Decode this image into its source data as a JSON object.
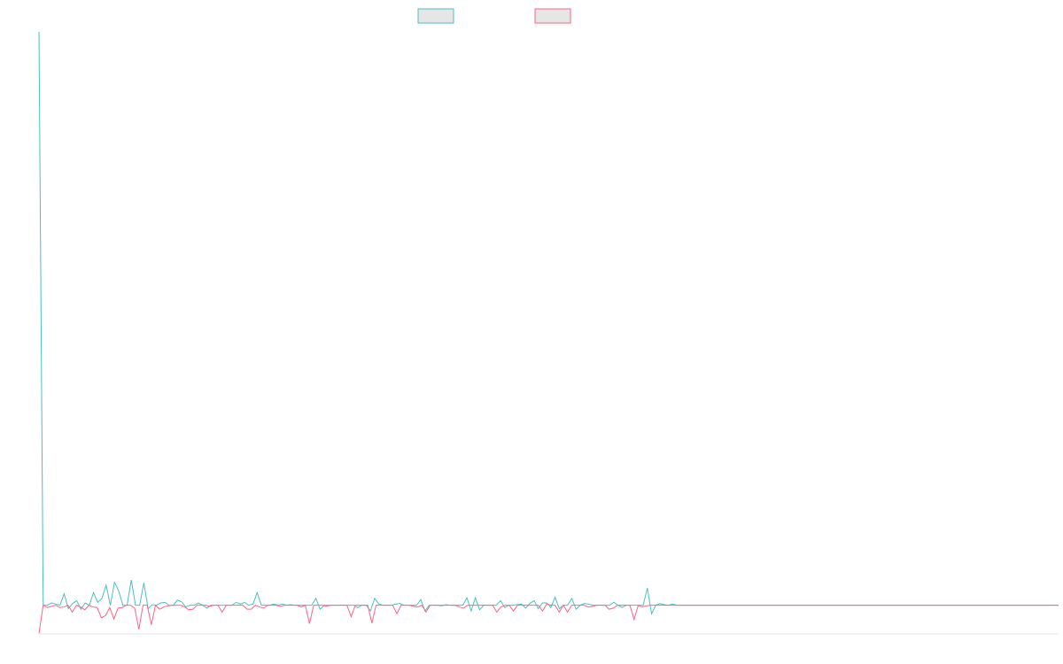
{
  "colors": {
    "series_a": "#4bc0c0",
    "series_b": "#ff6384",
    "legend_fill": "#e6e6e6",
    "axis": "#e6e6e6"
  },
  "chart_data": {
    "type": "line",
    "title": "",
    "xlabel": "",
    "ylabel": "",
    "legend_position": "top",
    "grid": false,
    "ylim": [
      -5,
      100
    ],
    "series": [
      {
        "color": "#4bc0c0",
        "values": [
          100,
          0,
          0,
          0.4,
          0.2,
          0,
          2,
          -0.6,
          0.3,
          0.8,
          -0.7,
          0.4,
          0,
          2.2,
          0.5,
          1.2,
          3.5,
          0,
          4,
          2.5,
          0,
          0,
          4.4,
          0,
          0,
          3.9,
          -0.6,
          0.1,
          0,
          0.4,
          0.5,
          0,
          0,
          0.9,
          0.6,
          -0.3,
          0,
          0,
          0.4,
          0,
          -0.5,
          0,
          0,
          0,
          0,
          0,
          0,
          0.5,
          0.2,
          0.5,
          0,
          0.2,
          2.2,
          0,
          0,
          0,
          0.2,
          0,
          0.2,
          0,
          0.1,
          0,
          0,
          0,
          0,
          0,
          1.2,
          -0.7,
          0,
          0,
          0,
          0,
          0,
          0,
          0,
          0,
          -0.4,
          0,
          0,
          -1,
          1.2,
          0.2,
          0,
          0,
          0,
          0.2,
          0.3,
          0,
          0,
          0,
          0,
          1,
          -1,
          0,
          0,
          0,
          -0.1,
          0.1,
          0,
          0,
          0,
          0,
          1.3,
          -1,
          1.3,
          -0.8,
          0,
          0,
          0,
          0,
          0.8,
          -0.4,
          0,
          0,
          0.1,
          0.2,
          -0.5,
          0.3,
          0.8,
          -0.6,
          0.4,
          0.4,
          -0.4,
          1.4,
          -0.6,
          0,
          0,
          1.2,
          -0.7,
          0,
          0.3,
          0.2,
          0,
          0,
          0,
          0,
          0,
          0.5,
          0,
          -0.4,
          0,
          0,
          0,
          0,
          0,
          3,
          -1.5,
          0,
          0.3,
          0.1,
          0,
          0.2,
          0,
          0,
          0,
          0,
          0,
          0,
          0,
          0,
          0,
          0,
          0,
          0,
          0,
          0,
          0,
          0,
          0,
          0,
          0,
          0,
          0,
          0,
          0,
          0,
          0,
          0,
          0,
          0,
          0,
          0,
          0,
          0,
          0,
          0,
          0,
          0,
          0,
          0,
          0,
          0,
          0,
          0,
          0,
          0,
          0,
          0,
          0,
          0,
          0,
          0,
          0,
          0,
          0,
          0,
          0,
          0,
          0,
          0,
          0,
          0,
          0,
          0,
          0,
          0,
          0,
          0,
          0,
          0,
          0,
          0,
          0,
          0,
          0,
          0,
          0,
          0,
          0,
          0,
          0,
          0,
          0,
          0,
          0,
          0,
          0,
          0,
          0,
          0,
          0,
          0,
          0,
          0
        ]
      },
      {
        "color": "#ff6384",
        "values": [
          -4.9,
          0,
          -0.4,
          -0.2,
          0,
          -0.4,
          -0.3,
          0,
          -1.2,
          0,
          -0.3,
          -0.8,
          0,
          -0.3,
          -0.4,
          -2.2,
          -1.8,
          -0.4,
          -2.4,
          -0.5,
          -0.4,
          0,
          0,
          -0.5,
          -4.2,
          0,
          0,
          -3.4,
          0,
          -0.7,
          -0.3,
          -0.1,
          0,
          0,
          0,
          -0.3,
          -0.8,
          -0.7,
          0,
          0,
          0,
          -0.2,
          0,
          0,
          -1.2,
          0,
          0,
          0,
          0,
          0,
          -0.7,
          -0.7,
          0,
          -0.3,
          -0.5,
          0,
          0,
          0,
          -0.2,
          0,
          0,
          0,
          0,
          -0.3,
          0,
          -3.2,
          0,
          0,
          0,
          -0.2,
          0,
          0,
          0,
          0,
          0,
          -2,
          0,
          0,
          0,
          0,
          -3.1,
          0,
          0,
          0,
          0,
          0,
          -1.5,
          0,
          0,
          0,
          -0.2,
          -0.3,
          0,
          -1.2,
          0,
          0,
          0,
          0,
          0,
          0,
          0,
          -0.3,
          -0.5,
          0,
          0,
          0,
          0,
          0,
          0,
          0,
          -1.2,
          -0.3,
          0,
          0,
          -1,
          0,
          0,
          0,
          0,
          0,
          0,
          -1,
          0.2,
          0,
          0,
          -1.2,
          0,
          -1.2,
          0,
          0,
          0,
          0,
          -0.3,
          -0.2,
          0,
          0,
          0,
          -0.7,
          -0.5,
          0,
          0,
          0,
          0,
          -2.5,
          0,
          -0.3,
          -0.1,
          0,
          0,
          0,
          0,
          0,
          0,
          0,
          0,
          0,
          0,
          0,
          0,
          0,
          0,
          0,
          0,
          0,
          0,
          0,
          0,
          0,
          0,
          0,
          0,
          0,
          0,
          0,
          0,
          0,
          0,
          0,
          0,
          0,
          0,
          0,
          0,
          0,
          0,
          0,
          0,
          0,
          0,
          0,
          0,
          0,
          0,
          0,
          0,
          0,
          0,
          0,
          0,
          0,
          0,
          0,
          0,
          0,
          0,
          0,
          0,
          0,
          0,
          0,
          0,
          0,
          0,
          0,
          0,
          0,
          0,
          0,
          0,
          0,
          0,
          0,
          0,
          0,
          0,
          0,
          0,
          0,
          0,
          0,
          0,
          0,
          0,
          0,
          0,
          0,
          0,
          0,
          0,
          0,
          0,
          0,
          0,
          0,
          0,
          0
        ]
      }
    ]
  }
}
